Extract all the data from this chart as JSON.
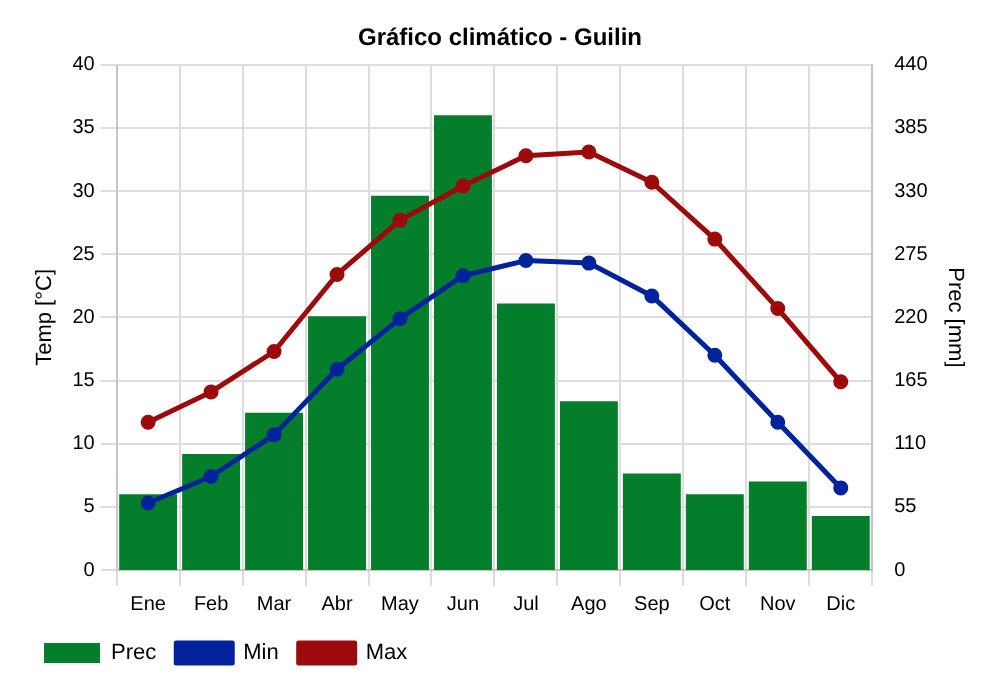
{
  "chart_data": {
    "type": "bar",
    "title": "Gráfico climático - Guilin",
    "ylabel": "Temp [°C]",
    "y2label": "Prec [mm]",
    "categories": [
      "Ene",
      "Feb",
      "Mar",
      "Abr",
      "May",
      "Jun",
      "Jul",
      "Ago",
      "Sep",
      "Oct",
      "Nov",
      "Dic"
    ],
    "series": [
      {
        "name": "Prec",
        "axis": "y2",
        "color": "#047e2b",
        "values": [
          66,
          101,
          137,
          221,
          326,
          396,
          232,
          147,
          84,
          66,
          77,
          47
        ]
      },
      {
        "name": "Min",
        "type": "line",
        "color": "#00239c",
        "values": [
          5.3,
          7.4,
          10.7,
          15.9,
          19.9,
          23.3,
          24.5,
          24.3,
          21.7,
          17.0,
          11.7,
          6.5
        ]
      },
      {
        "name": "Max",
        "type": "line",
        "color": "#9c0a0b",
        "values": [
          11.7,
          14.1,
          17.3,
          23.4,
          27.7,
          30.4,
          32.8,
          33.1,
          30.7,
          26.2,
          20.7,
          14.9
        ]
      }
    ],
    "ylim": [
      0,
      40
    ],
    "yticks": [
      0,
      5,
      10,
      15,
      20,
      25,
      30,
      35,
      40
    ],
    "y2lim": [
      0,
      440
    ],
    "y2ticks": [
      0,
      55,
      110,
      165,
      220,
      275,
      330,
      385,
      440
    ],
    "grid": true,
    "legend": "bottom left",
    "marker": "circle"
  }
}
